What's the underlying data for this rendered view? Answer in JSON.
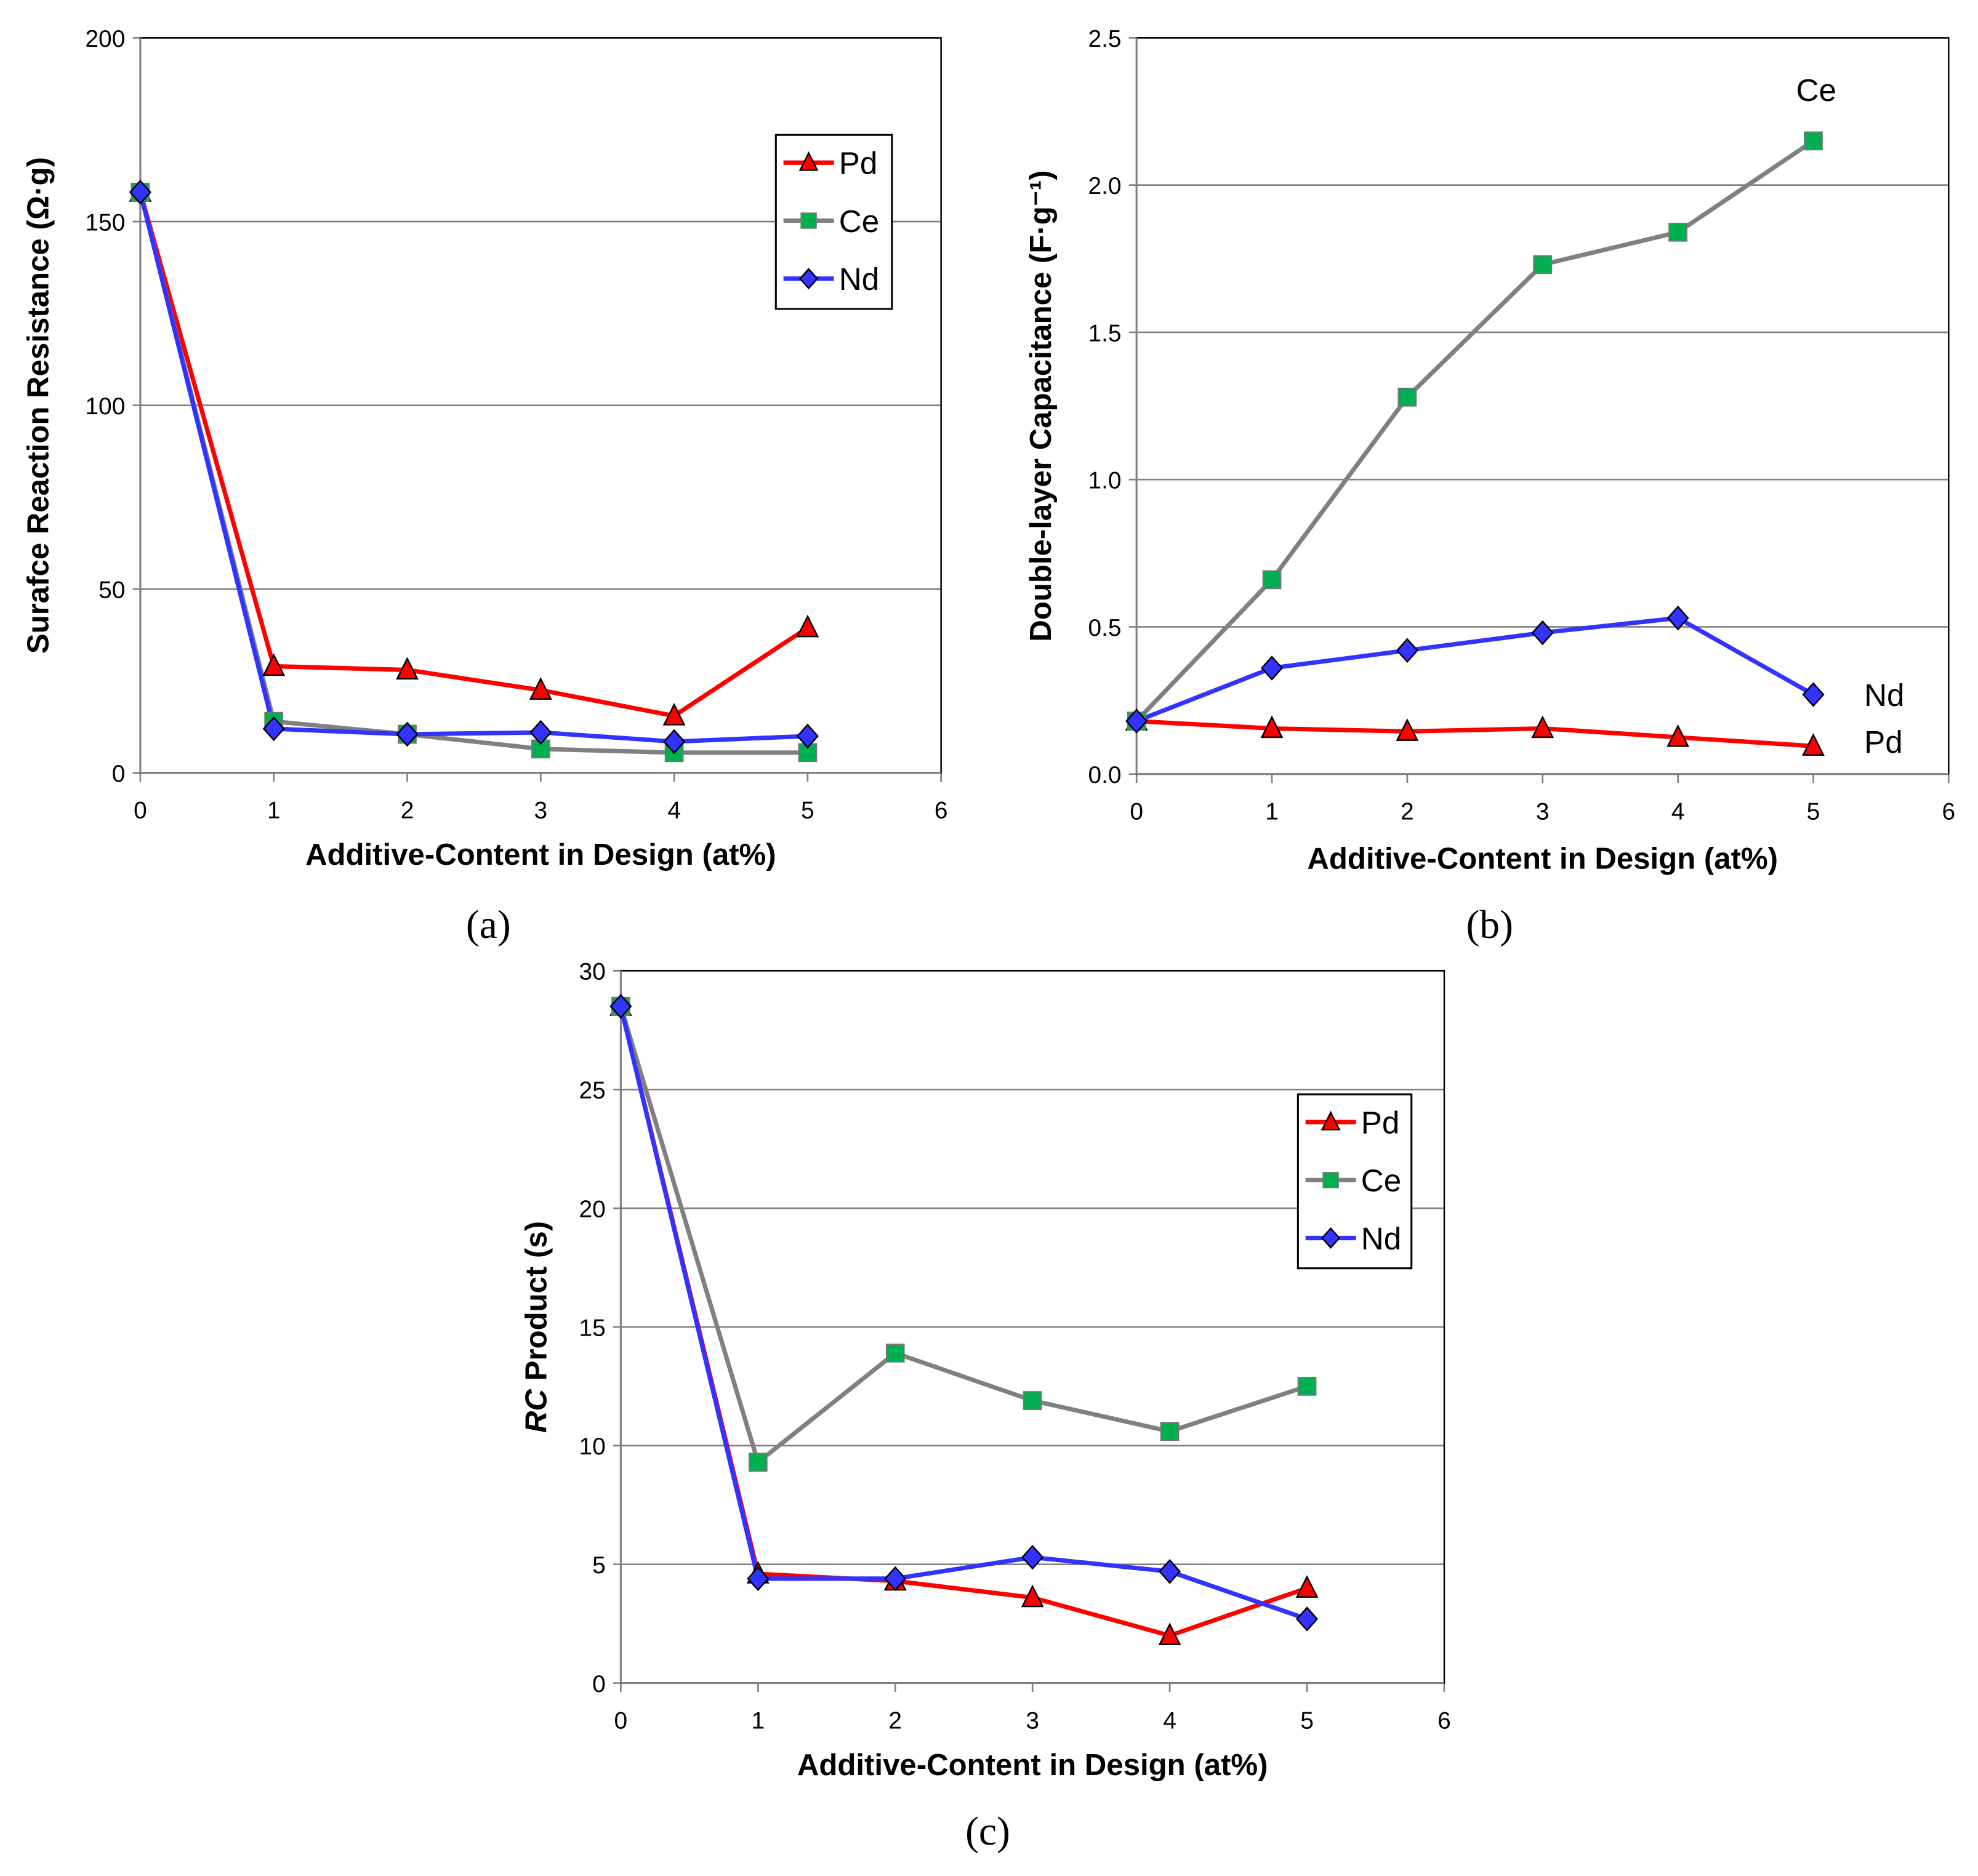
{
  "colors": {
    "Pd": "#ff0000",
    "Ce": "#808080",
    "Nd": "#3333ff",
    "Pd_marker": "#ff0000",
    "Ce_marker": "#00b050",
    "Nd_marker": "#3333ff"
  },
  "chart_data": [
    {
      "type": "line",
      "panel_label": "(a)",
      "xlabel": "Additive-Content in Design (at%)",
      "ylabel": "Surafce Reaction Resistance (Ω·g)",
      "xlim": [
        0,
        6
      ],
      "ylim": [
        0,
        200
      ],
      "xticks": [
        0,
        1,
        2,
        3,
        4,
        5,
        6
      ],
      "yticks": [
        0,
        50,
        100,
        150,
        200
      ],
      "grid": "horizontal",
      "legend": "top-right",
      "x": [
        0,
        1,
        2,
        3,
        4,
        5
      ],
      "series": [
        {
          "name": "Pd",
          "marker": "triangle",
          "values": [
            158,
            29,
            28,
            22.5,
            15.5,
            39.5
          ]
        },
        {
          "name": "Ce",
          "marker": "square",
          "values": [
            158,
            14,
            10.5,
            6.5,
            5.5,
            5.5
          ]
        },
        {
          "name": "Nd",
          "marker": "diamond",
          "values": [
            158,
            12,
            10.5,
            11,
            8.5,
            10
          ]
        }
      ]
    },
    {
      "type": "line",
      "panel_label": "(b)",
      "xlabel": "Additive-Content in Design (at%)",
      "ylabel": "Double-layer Capacitance (F·g⁻¹)",
      "xlim": [
        0,
        6
      ],
      "ylim": [
        0,
        2.5
      ],
      "xticks": [
        0,
        1,
        2,
        3,
        4,
        5,
        6
      ],
      "yticks": [
        "0.0",
        "0.5",
        "1.0",
        "1.5",
        "2.0",
        "2.5"
      ],
      "grid": "horizontal",
      "legend": "end-labels",
      "x": [
        0,
        1,
        2,
        3,
        4,
        5
      ],
      "series": [
        {
          "name": "Pd",
          "marker": "triangle",
          "values": [
            0.18,
            0.155,
            0.145,
            0.155,
            0.125,
            0.095
          ]
        },
        {
          "name": "Ce",
          "marker": "square",
          "values": [
            0.18,
            0.66,
            1.28,
            1.73,
            1.84,
            2.15
          ]
        },
        {
          "name": "Nd",
          "marker": "diamond",
          "values": [
            0.18,
            0.36,
            0.42,
            0.48,
            0.53,
            0.27
          ]
        }
      ]
    },
    {
      "type": "line",
      "panel_label": "(c)",
      "xlabel": "Additive-Content in Design (at%)",
      "ylabel_italic": "RC",
      "ylabel": " Product (s)",
      "xlim": [
        0,
        6
      ],
      "ylim": [
        0,
        30
      ],
      "xticks": [
        0,
        1,
        2,
        3,
        4,
        5,
        6
      ],
      "yticks": [
        0,
        5,
        10,
        15,
        20,
        25,
        30
      ],
      "grid": "horizontal",
      "legend": "top-right",
      "x": [
        0,
        1,
        2,
        3,
        4,
        5
      ],
      "series": [
        {
          "name": "Pd",
          "marker": "triangle",
          "values": [
            28.5,
            4.6,
            4.3,
            3.6,
            2.0,
            4.0
          ]
        },
        {
          "name": "Ce",
          "marker": "square",
          "values": [
            28.5,
            9.3,
            13.9,
            11.9,
            10.6,
            12.5
          ]
        },
        {
          "name": "Nd",
          "marker": "diamond",
          "values": [
            28.5,
            4.4,
            4.4,
            5.3,
            4.7,
            2.7
          ]
        }
      ]
    }
  ]
}
